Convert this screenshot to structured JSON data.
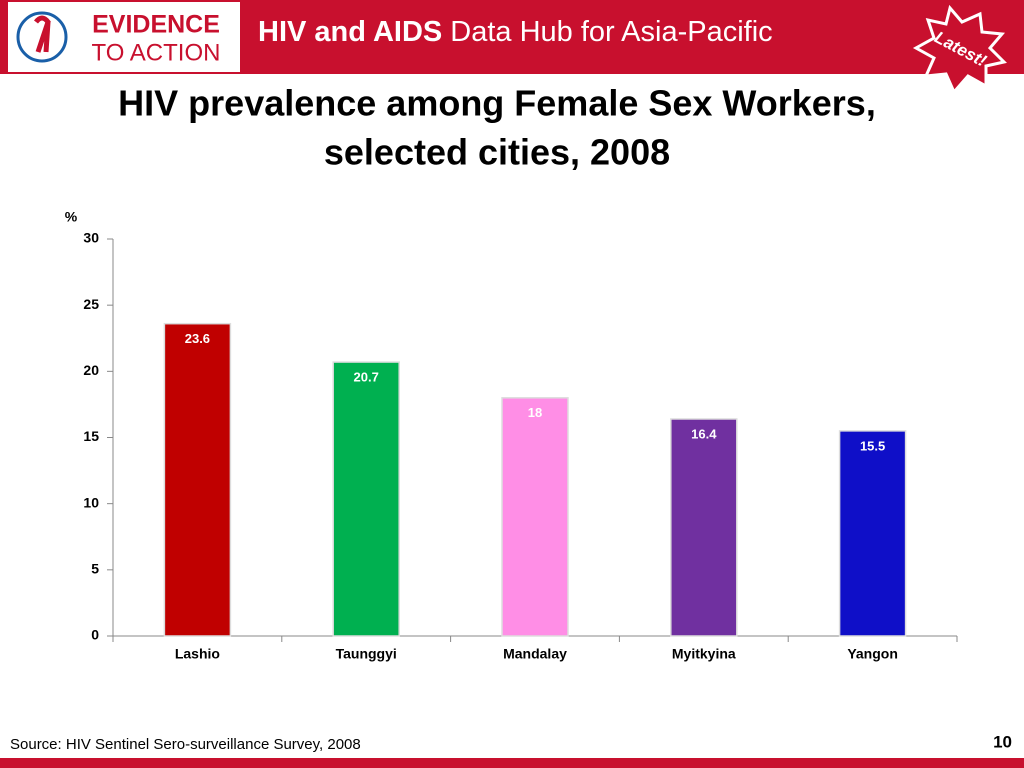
{
  "header": {
    "logo_top": "EVIDENCE",
    "logo_bottom": "TO ACTION",
    "title_bold": "HIV and AIDS",
    "title_rest": "Data Hub for Asia-Pacific",
    "badge": "Latest!"
  },
  "chart_data": {
    "type": "bar",
    "title": [
      "HIV prevalence among Female Sex Workers,",
      "selected cities, 2008"
    ],
    "y_label": "%",
    "categories": [
      "Lashio",
      "Taunggyi",
      "Mandalay",
      "Myitkyina",
      "Yangon"
    ],
    "values": [
      23.6,
      20.7,
      18,
      16.4,
      15.5
    ],
    "colors": [
      "#c00000",
      "#00b050",
      "#ff8ee6",
      "#7030a0",
      "#0f0fc8"
    ],
    "ylim": [
      0,
      30
    ],
    "yticks": [
      0,
      5,
      10,
      15,
      20,
      25,
      30
    ]
  },
  "footer": {
    "source": "Source: HIV Sentinel Sero-surveillance Survey, 2008",
    "page": "10"
  }
}
